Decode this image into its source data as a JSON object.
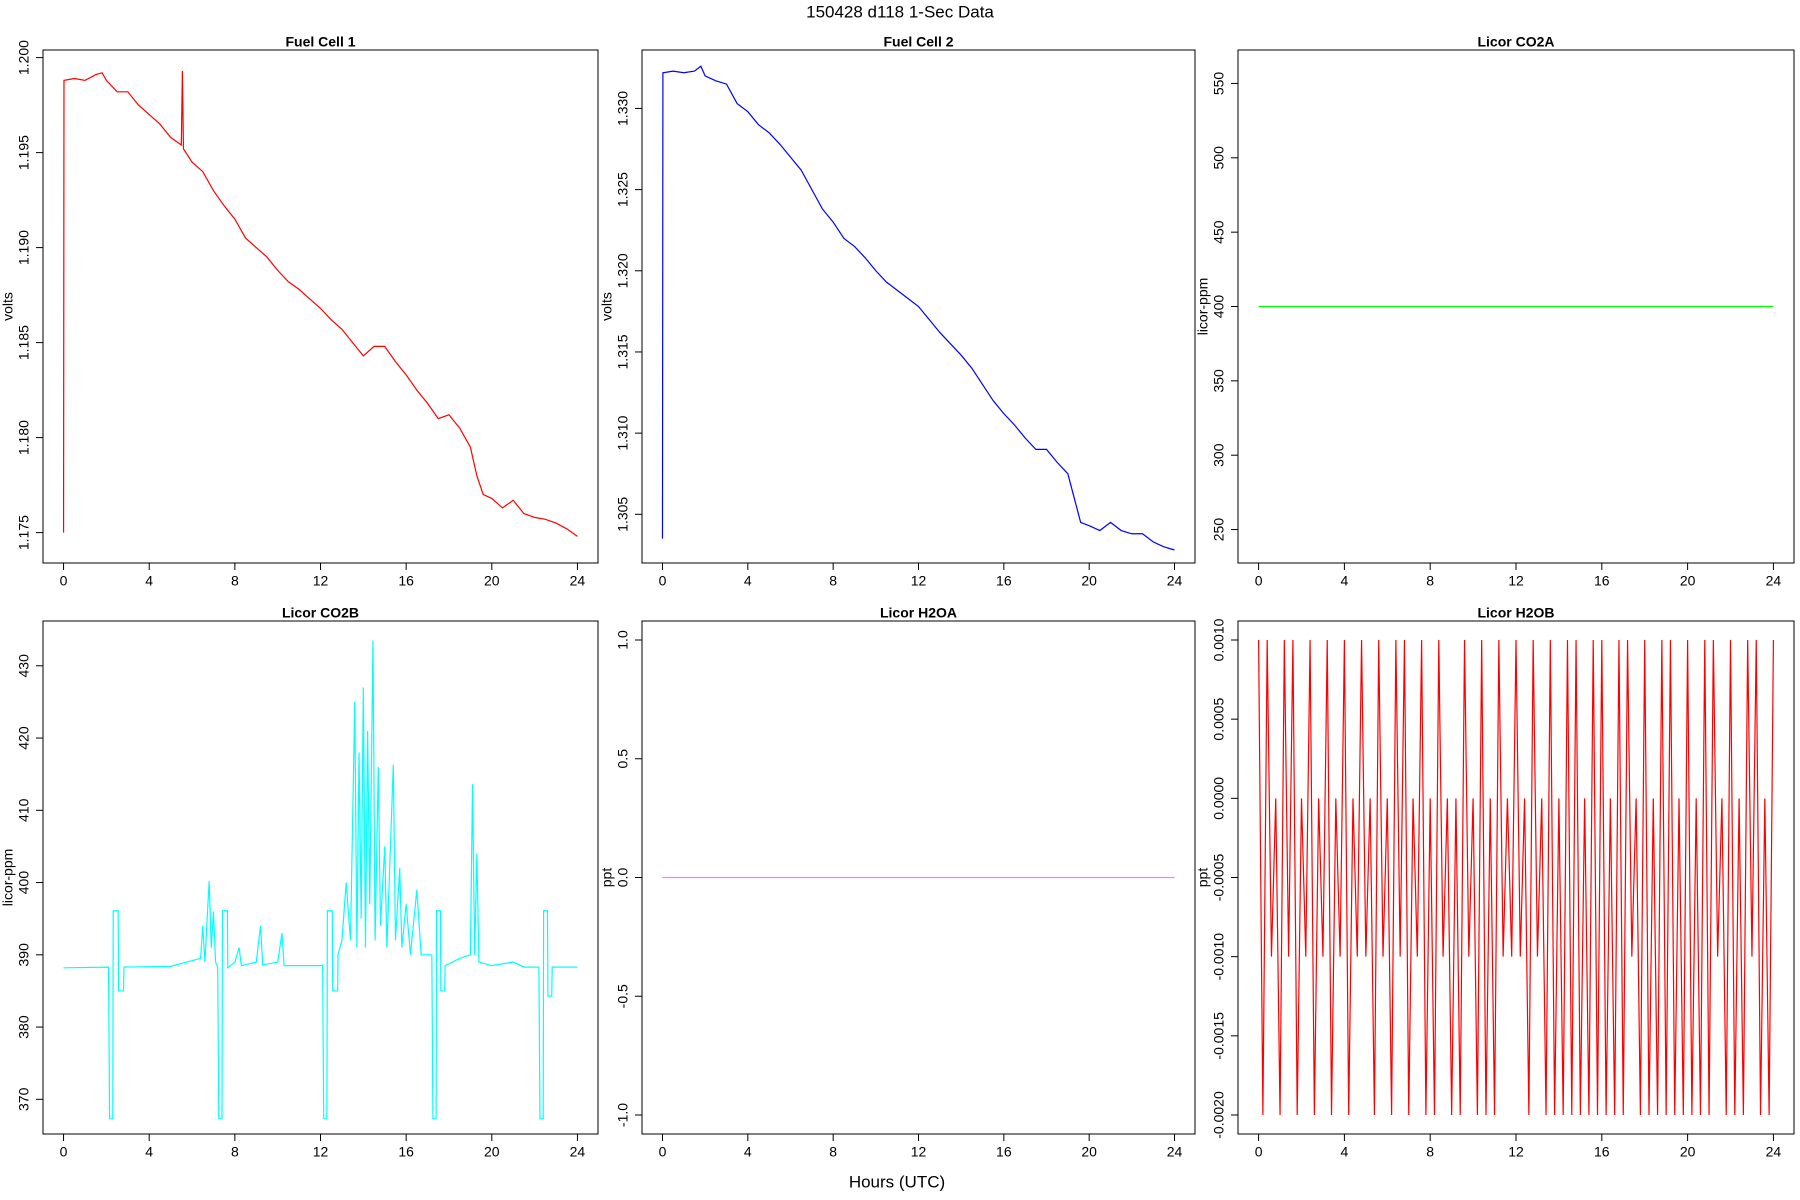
{
  "title": "150428   d118   1-Sec Data",
  "x_label": "Hours (UTC)",
  "chart_data": [
    {
      "type": "line",
      "title": "Fuel Cell 1",
      "y_label": "volts",
      "color": "#ff0000",
      "xlim": [
        -0.96,
        24.96
      ],
      "xticks": [
        0,
        4,
        8,
        12,
        16,
        20,
        24
      ],
      "ylim": [
        1.1734,
        1.2004
      ],
      "yticks": [
        1.175,
        {
          "value": 1.18,
          "label": "1.180"
        },
        1.185,
        {
          "value": 1.19,
          "label": "1.190"
        },
        1.195,
        {
          "value": 1.2,
          "label": "1.200"
        }
      ],
      "x": [
        0,
        0.02,
        0.5,
        1,
        1.5,
        1.8,
        2,
        2.5,
        3,
        3.5,
        4,
        4.5,
        5,
        5.5,
        5.55,
        5.6,
        6,
        6.5,
        7,
        7.5,
        8,
        8.5,
        9,
        9.5,
        10,
        10.5,
        11,
        11.5,
        12,
        12.5,
        13,
        13.5,
        14,
        14.5,
        15,
        15.5,
        16,
        16.5,
        17,
        17.5,
        18,
        18.5,
        19,
        19.3,
        19.6,
        20,
        20.5,
        21,
        21.5,
        22,
        22.5,
        23,
        23.5,
        24
      ],
      "values": [
        1.175,
        1.1988,
        1.1989,
        1.1988,
        1.1991,
        1.1992,
        1.1988,
        1.1982,
        1.1982,
        1.1975,
        1.197,
        1.1965,
        1.1958,
        1.1954,
        1.1993,
        1.1952,
        1.1945,
        1.194,
        1.193,
        1.1922,
        1.1915,
        1.1905,
        1.19,
        1.1895,
        1.1888,
        1.1882,
        1.1878,
        1.1873,
        1.1868,
        1.1862,
        1.1857,
        1.185,
        1.1843,
        1.1848,
        1.1848,
        1.184,
        1.1833,
        1.1825,
        1.1818,
        1.181,
        1.1812,
        1.1805,
        1.1795,
        1.178,
        1.177,
        1.1768,
        1.1763,
        1.1767,
        1.176,
        1.1758,
        1.1757,
        1.1755,
        1.1752,
        1.1748
      ]
    },
    {
      "type": "line",
      "title": "Fuel Cell 2",
      "y_label": "volts",
      "color": "#0000ff",
      "xlim": [
        -0.96,
        24.96
      ],
      "xticks": [
        0,
        4,
        8,
        12,
        16,
        20,
        24
      ],
      "ylim": [
        1.302,
        1.3336
      ],
      "yticks": [
        1.305,
        {
          "value": 1.31,
          "label": "1.310"
        },
        1.315,
        {
          "value": 1.32,
          "label": "1.320"
        },
        1.325,
        {
          "value": 1.33,
          "label": "1.330"
        }
      ],
      "x": [
        0,
        0.02,
        0.5,
        1,
        1.5,
        1.8,
        2,
        2.5,
        3,
        3.5,
        4,
        4.5,
        5,
        5.5,
        6,
        6.5,
        7,
        7.5,
        8,
        8.5,
        9,
        9.5,
        10,
        10.5,
        11,
        11.5,
        12,
        12.5,
        13,
        13.5,
        14,
        14.5,
        15,
        15.5,
        16,
        16.5,
        17,
        17.5,
        18,
        18.5,
        19,
        19.3,
        19.6,
        20,
        20.5,
        21,
        21.5,
        22,
        22.5,
        23,
        23.5,
        24
      ],
      "values": [
        1.3035,
        1.3322,
        1.3323,
        1.3322,
        1.3323,
        1.3326,
        1.332,
        1.3317,
        1.3315,
        1.3303,
        1.3298,
        1.329,
        1.3285,
        1.3278,
        1.327,
        1.3262,
        1.325,
        1.3238,
        1.323,
        1.322,
        1.3215,
        1.3208,
        1.32,
        1.3193,
        1.3188,
        1.3183,
        1.3178,
        1.317,
        1.3162,
        1.3155,
        1.3148,
        1.314,
        1.313,
        1.312,
        1.3112,
        1.3105,
        1.3097,
        1.309,
        1.309,
        1.3082,
        1.3075,
        1.306,
        1.3045,
        1.3043,
        1.304,
        1.3045,
        1.304,
        1.3038,
        1.3038,
        1.3033,
        1.303,
        1.3028
      ]
    },
    {
      "type": "line",
      "title": "Licor CO2A",
      "y_label": "licor-ppm",
      "color": "#00ff00",
      "xlim": [
        -0.96,
        24.96
      ],
      "xticks": [
        0,
        4,
        8,
        12,
        16,
        20,
        24
      ],
      "ylim": [
        227.5,
        572.5
      ],
      "yticks": [
        250,
        300,
        350,
        400,
        450,
        500,
        550
      ],
      "x": [
        0,
        24
      ],
      "values": [
        400,
        400
      ]
    },
    {
      "type": "line",
      "title": "Licor CO2B",
      "y_label": "licor-ppm",
      "color": "#00ffff",
      "xlim": [
        -0.96,
        24.96
      ],
      "xticks": [
        0,
        4,
        8,
        12,
        16,
        20,
        24
      ],
      "ylim": [
        365.2,
        436.2
      ],
      "yticks": [
        370,
        380,
        390,
        400,
        410,
        420,
        430
      ],
      "x": [
        0,
        2.1,
        2.15,
        2.3,
        2.32,
        2.55,
        2.57,
        2.8,
        2.82,
        5,
        6.4,
        6.5,
        6.6,
        6.8,
        6.9,
        7,
        7.1,
        7.2,
        7.25,
        7.4,
        7.42,
        7.65,
        7.67,
        8,
        8.2,
        8.3,
        9,
        9.2,
        9.3,
        10,
        10.2,
        10.3,
        12,
        12.1,
        12.15,
        12.3,
        12.32,
        12.55,
        12.57,
        12.8,
        12.82,
        13,
        13.2,
        13.4,
        13.6,
        13.7,
        13.8,
        13.9,
        14,
        14.1,
        14.2,
        14.3,
        14.45,
        14.55,
        14.7,
        14.8,
        15,
        15.1,
        15.4,
        15.5,
        15.7,
        15.8,
        16,
        16.2,
        16.5,
        16.7,
        17.2,
        17.25,
        17.4,
        17.42,
        17.6,
        17.62,
        17.8,
        17.82,
        18.5,
        19,
        19.1,
        19.2,
        19.3,
        19.4,
        20,
        21,
        21.5,
        22.2,
        22.25,
        22.4,
        22.42,
        22.6,
        22.62,
        22.8,
        22.82,
        24
      ],
      "values": [
        388.2,
        388.3,
        367.3,
        367.3,
        396.1,
        396.1,
        385,
        385,
        388.3,
        388.4,
        389.5,
        394,
        389,
        400.2,
        391,
        396,
        389,
        388.3,
        367.3,
        367.3,
        396.1,
        396.1,
        388.2,
        389,
        391,
        388.5,
        389,
        394,
        388.6,
        389,
        393,
        388.5,
        388.5,
        388.6,
        367.3,
        367.3,
        396.1,
        396.1,
        385,
        385,
        390,
        392,
        400,
        392,
        425,
        391,
        418,
        395,
        427,
        391,
        421,
        397,
        433.5,
        392,
        416,
        394,
        405,
        391,
        416.3,
        392,
        402,
        391,
        397,
        390,
        399,
        390,
        390,
        367.3,
        367.3,
        396.1,
        396.1,
        385,
        385,
        388.5,
        389.5,
        390,
        413.6,
        390,
        404,
        389,
        388.5,
        389,
        388.3,
        388.3,
        367.3,
        367.3,
        396.1,
        396.1,
        384.3,
        384.3,
        388.3,
        388.3
      ]
    },
    {
      "type": "line",
      "title": "Licor H2OA",
      "y_label": "ppt",
      "color": "#ee82ee",
      "xlim": [
        -0.96,
        24.96
      ],
      "xticks": [
        0,
        4,
        8,
        12,
        16,
        20,
        24
      ],
      "ylim": [
        -1.08,
        1.08
      ],
      "yticks": [
        {
          "value": -1,
          "label": "-1.0"
        },
        -0.5,
        {
          "value": 0,
          "label": "0.0"
        },
        0.5,
        {
          "value": 1,
          "label": "1.0"
        }
      ],
      "x": [
        0,
        24
      ],
      "values": [
        0,
        0
      ]
    },
    {
      "type": "line",
      "title": "Licor H2OB",
      "y_label": "ppt",
      "color": "#ff0000",
      "xlim": [
        -0.96,
        24.96
      ],
      "xticks": [
        0,
        4,
        8,
        12,
        16,
        20,
        24
      ],
      "ylim": [
        -0.00212,
        0.00112
      ],
      "yticks": [
        {
          "value": -0.002,
          "label": "-0.0020"
        },
        {
          "value": -0.0015,
          "label": "-0.0015"
        },
        {
          "value": -0.001,
          "label": "-0.0010"
        },
        {
          "value": -0.0005,
          "label": "-0.0005"
        },
        {
          "value": 0,
          "label": "0.0000"
        },
        {
          "value": 0.0005,
          "label": "0.0005"
        },
        {
          "value": 0.001,
          "label": "0.0010"
        }
      ],
      "x": [
        0,
        0.2,
        0.4,
        0.6,
        0.8,
        1,
        1.2,
        1.4,
        1.6,
        1.8,
        2,
        2.2,
        2.4,
        2.6,
        2.8,
        3,
        3.2,
        3.4,
        3.6,
        3.8,
        4,
        4.2,
        4.4,
        4.6,
        4.8,
        5,
        5.2,
        5.4,
        5.6,
        5.8,
        6,
        6.2,
        6.4,
        6.6,
        6.8,
        7,
        7.2,
        7.4,
        7.6,
        7.8,
        8,
        8.2,
        8.4,
        8.6,
        8.8,
        9,
        9.2,
        9.4,
        9.6,
        9.8,
        10,
        10.2,
        10.4,
        10.6,
        10.8,
        11,
        11.2,
        11.4,
        11.6,
        11.8,
        12,
        12.2,
        12.4,
        12.6,
        12.8,
        13,
        13.2,
        13.4,
        13.6,
        13.8,
        14,
        14.2,
        14.4,
        14.6,
        14.8,
        15,
        15.2,
        15.4,
        15.6,
        15.8,
        16,
        16.2,
        16.4,
        16.6,
        16.8,
        17,
        17.2,
        17.4,
        17.6,
        17.8,
        18,
        18.2,
        18.4,
        18.6,
        18.8,
        19,
        19.2,
        19.4,
        19.6,
        19.8,
        20,
        20.2,
        20.4,
        20.6,
        20.8,
        21,
        21.2,
        21.4,
        21.6,
        21.8,
        22,
        22.2,
        22.4,
        22.6,
        22.8,
        23,
        23.2,
        23.4,
        23.6,
        23.8,
        24
      ],
      "values": [
        0.001,
        -0.002,
        0.001,
        -0.001,
        0,
        -0.002,
        0.001,
        -0.001,
        0.001,
        -0.002,
        0,
        -0.001,
        0.001,
        -0.002,
        0,
        -0.001,
        0.001,
        -0.002,
        0,
        -0.001,
        0.001,
        -0.002,
        0,
        -0.001,
        0.001,
        -0.001,
        0,
        -0.002,
        0.001,
        -0.001,
        0,
        -0.002,
        0.001,
        -0.001,
        0.001,
        -0.002,
        0,
        -0.001,
        0.001,
        -0.002,
        0,
        -0.002,
        0.001,
        -0.001,
        0,
        -0.002,
        0,
        -0.002,
        0.001,
        -0.001,
        0,
        -0.002,
        0.001,
        -0.002,
        0,
        -0.002,
        0.001,
        -0.001,
        0,
        -0.001,
        0.001,
        -0.001,
        0,
        -0.002,
        0.001,
        -0.001,
        0,
        -0.002,
        0.001,
        -0.002,
        0,
        -0.002,
        0.001,
        -0.002,
        0.001,
        -0.002,
        0,
        -0.002,
        0.001,
        -0.002,
        0.001,
        -0.002,
        0,
        -0.002,
        0.001,
        -0.002,
        0.001,
        -0.001,
        0,
        -0.002,
        0.001,
        -0.002,
        0,
        -0.002,
        0.001,
        -0.002,
        0.001,
        -0.002,
        0,
        -0.002,
        0.001,
        -0.002,
        0,
        -0.002,
        0.001,
        -0.002,
        0.001,
        -0.001,
        0,
        -0.002,
        0.001,
        -0.002,
        0,
        -0.002,
        0.001,
        -0.001,
        0.001,
        -0.002,
        0,
        -0.002,
        0.001
      ]
    }
  ]
}
